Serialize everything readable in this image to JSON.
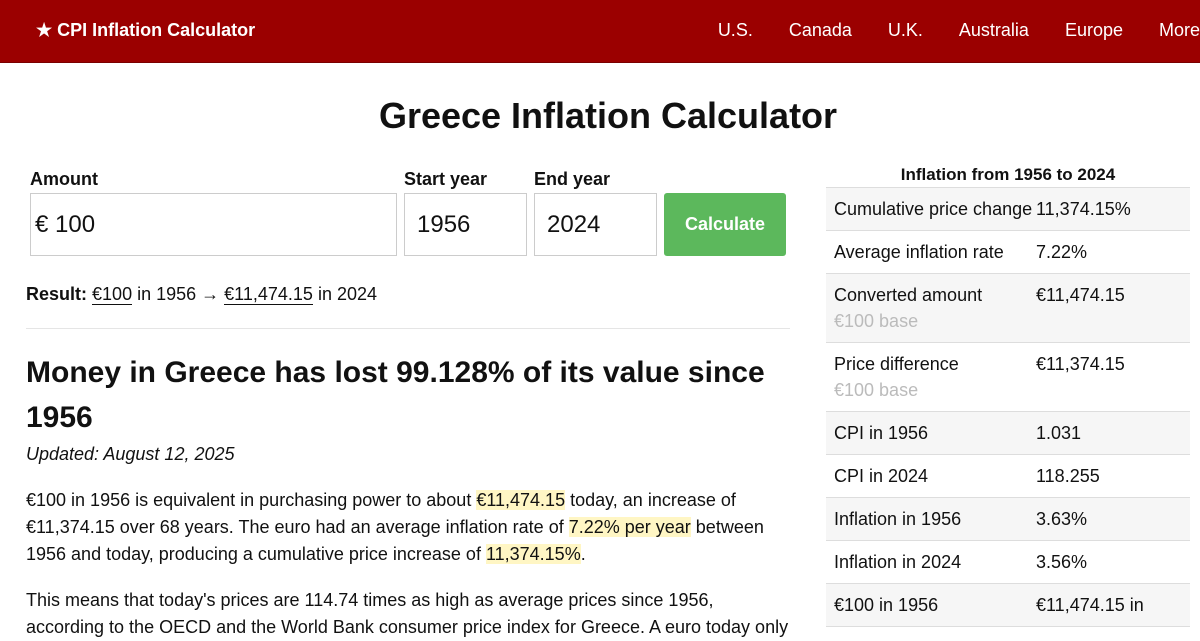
{
  "nav": {
    "brand": "★ CPI Inflation Calculator",
    "links": [
      "U.S.",
      "Canada",
      "U.K.",
      "Australia",
      "Europe",
      "More"
    ]
  },
  "title": "Greece Inflation Calculator",
  "form": {
    "amount": {
      "label": "Amount",
      "prefix": "€",
      "value": "100"
    },
    "start": {
      "label": "Start year",
      "value": "1956"
    },
    "end": {
      "label": "End year",
      "value": "2024"
    },
    "button": "Calculate"
  },
  "result": {
    "label": "Result:",
    "from": "€100",
    "mid": "in 1956 →",
    "to": "€11,474.15",
    "end": "in 2024"
  },
  "article": {
    "heading": "Money in Greece has lost 99.128% of its value since 1956",
    "updated": "Updated: August 12, 2025",
    "paragraphs": [
      [
        {
          "text": "€100 in 1956 is equivalent in purchasing power to about ",
          "highlight": false
        },
        {
          "text": "€11,474.15",
          "highlight": true
        },
        {
          "text": " today, an increase of €11,374.15 over 68 years. The euro had an average inflation rate of ",
          "highlight": false
        },
        {
          "text": "7.22% per year",
          "highlight": true
        },
        {
          "text": " between 1956 and today, producing a cumulative price increase of ",
          "highlight": false
        },
        {
          "text": "11,374.15%",
          "highlight": true
        },
        {
          "text": ".",
          "highlight": false
        }
      ],
      [
        {
          "text": "This means that today's prices are 114.74 times as high as average prices since 1956, according to the OECD and the World Bank consumer price index for Greece. A euro today only",
          "highlight": false
        }
      ]
    ]
  },
  "sidebar": {
    "title": "Inflation from 1956 to 2024",
    "rows": [
      {
        "label": "Cumulative price change",
        "value": "11,374.15%"
      },
      {
        "label": "Average inflation rate",
        "value": "7.22%"
      },
      {
        "label": "Converted amount",
        "note": "€100 base",
        "value": "€11,474.15"
      },
      {
        "label": "Price difference",
        "note": "€100 base",
        "value": "€11,374.15"
      },
      {
        "label": "CPI in 1956",
        "value": "1.031"
      },
      {
        "label": "CPI in 2024",
        "value": "118.255"
      },
      {
        "label": "Inflation in 1956",
        "value": "3.63%"
      },
      {
        "label": "Inflation in 2024",
        "value": "3.56%"
      },
      {
        "label": "€100 in 1956",
        "value": "€11,474.15 in"
      }
    ]
  }
}
